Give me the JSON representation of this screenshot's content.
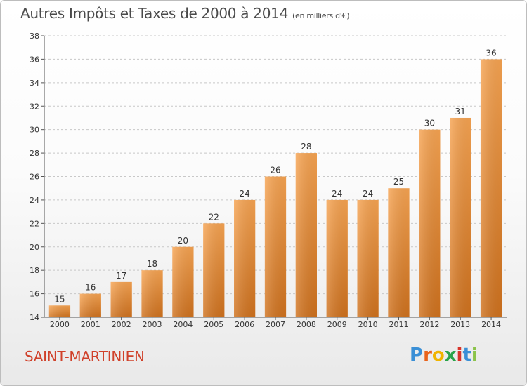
{
  "chart_data": {
    "type": "bar",
    "title": "Autres Impôts et Taxes de 2000 à 2014",
    "subtitle": "(en milliers d'€)",
    "categories": [
      "2000",
      "2001",
      "2002",
      "2003",
      "2004",
      "2005",
      "2006",
      "2007",
      "2008",
      "2009",
      "2010",
      "2011",
      "2012",
      "2013",
      "2014"
    ],
    "values": [
      15,
      16,
      17,
      18,
      20,
      22,
      24,
      26,
      28,
      24,
      24,
      25,
      30,
      31,
      36
    ],
    "ylim": [
      14,
      38
    ],
    "yticks": [
      14,
      16,
      18,
      20,
      22,
      24,
      26,
      28,
      30,
      32,
      34,
      36,
      38
    ],
    "grid": "horizontal-dashed",
    "bar_color_top": "#f7a452",
    "bar_color_bottom": "#d0721e"
  },
  "footer": {
    "city": "SAINT-MARTINIEN",
    "brand_letters": [
      "P",
      "r",
      "o",
      "x",
      "i",
      "t",
      "i"
    ],
    "brand_colors": [
      "#3a8fd6",
      "#e8631c",
      "#f0b400",
      "#2aa34a",
      "#d8342b",
      "#3a8fd6",
      "#8bc34a"
    ]
  }
}
